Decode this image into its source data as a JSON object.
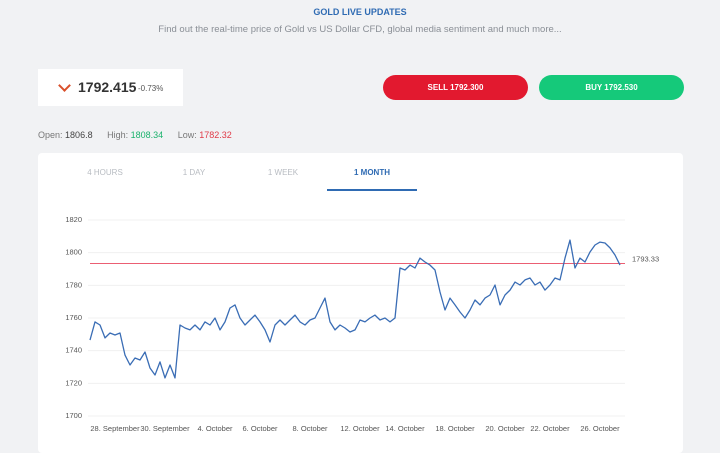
{
  "header": {
    "title": "GOLD LIVE UPDATES",
    "subtitle": "Find out the real-time price of Gold vs US Dollar CFD, global media sentiment and much more..."
  },
  "quote": {
    "price": "1792.415",
    "change": "-0.73%"
  },
  "buttons": {
    "sell": "SELL 1792.300",
    "buy": "BUY 1792.530"
  },
  "stats": [
    {
      "label": "Open:",
      "value": "1806.8"
    },
    {
      "label": "High:",
      "value": "1808.34"
    },
    {
      "label": "Low:",
      "value": "1782.32"
    }
  ],
  "tabs": [
    "4 HOURS",
    "1 DAY",
    "1 WEEK",
    "1 MONTH"
  ],
  "active_tab": 3,
  "chart_data": {
    "type": "line",
    "color": "#3a6db5",
    "grid": true,
    "reference_value": 1793.33,
    "reference_color": "#e8475f",
    "ylim": [
      1700,
      1820
    ],
    "yticks": [
      1700,
      1720,
      1740,
      1760,
      1780,
      1800,
      1820
    ],
    "categories": [
      null,
      null,
      null,
      null,
      null,
      "28. September",
      null,
      null,
      null,
      null,
      null,
      null,
      null,
      null,
      null,
      "30. September",
      null,
      null,
      null,
      null,
      null,
      null,
      null,
      null,
      null,
      "4. October",
      null,
      null,
      null,
      null,
      null,
      null,
      null,
      null,
      "6. October",
      null,
      null,
      null,
      null,
      null,
      null,
      null,
      null,
      null,
      "8. October",
      null,
      null,
      null,
      null,
      null,
      null,
      null,
      null,
      null,
      "12. October",
      null,
      null,
      null,
      null,
      null,
      null,
      null,
      null,
      "14. October",
      null,
      null,
      null,
      null,
      null,
      null,
      null,
      null,
      null,
      "18. October",
      null,
      null,
      null,
      null,
      null,
      null,
      null,
      null,
      null,
      "20. October",
      null,
      null,
      null,
      null,
      null,
      null,
      null,
      null,
      "22. October",
      null,
      null,
      null,
      null,
      null,
      null,
      null,
      null,
      null,
      "26. October",
      null,
      null,
      null,
      null
    ],
    "values": [
      1746.5,
      1757.6,
      1755.7,
      1747.8,
      1750.8,
      1749.6,
      1750.8,
      1737.3,
      1731.2,
      1735.5,
      1734.3,
      1739.2,
      1729.4,
      1725.1,
      1733.1,
      1723.3,
      1731.2,
      1723.3,
      1755.7,
      1753.9,
      1752.7,
      1755.7,
      1752.7,
      1757.6,
      1755.7,
      1760.0,
      1752.7,
      1757.6,
      1766.1,
      1768.0,
      1760.0,
      1755.7,
      1758.8,
      1761.8,
      1757.6,
      1752.7,
      1745.3,
      1755.7,
      1758.8,
      1755.7,
      1758.8,
      1761.8,
      1757.6,
      1755.7,
      1758.8,
      1760.0,
      1766.1,
      1772.2,
      1757.6,
      1752.7,
      1755.7,
      1753.9,
      1751.4,
      1752.7,
      1758.8,
      1757.6,
      1760.0,
      1761.8,
      1758.8,
      1760.0,
      1757.6,
      1760.0,
      1790.6,
      1789.4,
      1792.4,
      1790.6,
      1796.7,
      1794.3,
      1792.4,
      1789.4,
      1775.9,
      1764.9,
      1772.2,
      1768.0,
      1763.7,
      1760.0,
      1764.9,
      1771.0,
      1768.0,
      1772.2,
      1774.1,
      1780.2,
      1768.0,
      1774.1,
      1777.1,
      1782.0,
      1780.2,
      1783.3,
      1784.5,
      1780.2,
      1782.0,
      1777.1,
      1780.2,
      1784.5,
      1783.3,
      1796.7,
      1807.7,
      1790.6,
      1796.7,
      1794.3,
      1800.4,
      1804.7,
      1806.5,
      1805.9,
      1802.9,
      1798.6,
      1792.4
    ]
  }
}
